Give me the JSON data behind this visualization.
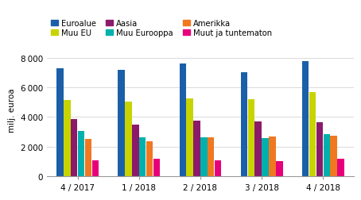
{
  "groups": [
    "4 / 2017",
    "1 / 2018",
    "2 / 2018",
    "3 / 2018",
    "4 / 2018"
  ],
  "series": {
    "Euroalue": [
      7300,
      7200,
      7650,
      7050,
      7800
    ],
    "Muu EU": [
      5150,
      5050,
      5250,
      5200,
      5700
    ],
    "Aasia": [
      3850,
      3500,
      3750,
      3700,
      3650
    ],
    "Muu Eurooppa": [
      3050,
      2600,
      2600,
      2550,
      2850
    ],
    "Amerikka": [
      2500,
      2350,
      2600,
      2650,
      2750
    ],
    "Muut ja tuntematon": [
      1050,
      1150,
      1050,
      1000,
      1150
    ]
  },
  "colors": {
    "Euroalue": "#1a5fa8",
    "Muu EU": "#c8d400",
    "Aasia": "#8b1a6b",
    "Muu Eurooppa": "#00b0ac",
    "Amerikka": "#f07820",
    "Muut ja tuntematon": "#e8007a"
  },
  "bar_order": [
    "Euroalue",
    "Muu EU",
    "Aasia",
    "Muu Eurooppa",
    "Amerikka",
    "Muut ja tuntematon"
  ],
  "legend_order": [
    "Euroalue",
    "Muu EU",
    "Aasia",
    "Muu Eurooppa",
    "Amerikka",
    "Muut ja tuntematon"
  ],
  "ylabel": "milj. euroa",
  "ylim": [
    0,
    9000
  ],
  "yticks": [
    0,
    2000,
    4000,
    6000,
    8000
  ]
}
